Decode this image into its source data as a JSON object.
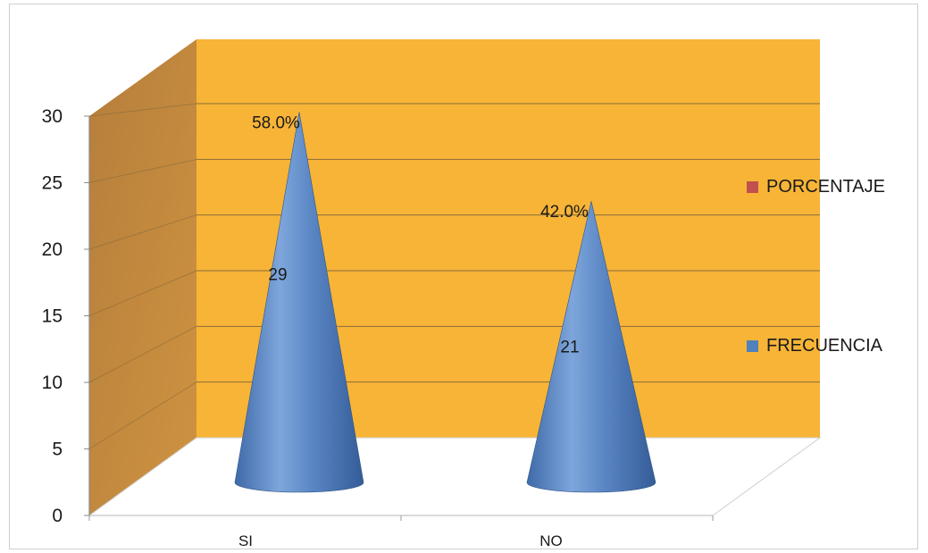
{
  "chart_data": {
    "type": "bar",
    "style": "3d-cone",
    "categories": [
      "SI",
      "NO"
    ],
    "series": [
      {
        "name": "PORCENTAJE",
        "values": [
          0.58,
          0.42
        ],
        "labels": [
          "58.0%",
          "42.0%"
        ],
        "color": "#c0504d"
      },
      {
        "name": "FRECUENCIA",
        "values": [
          29,
          21
        ],
        "labels": [
          "29",
          "21"
        ],
        "color": "#4f81bd"
      }
    ],
    "yticks": [
      0,
      5,
      10,
      15,
      20,
      25,
      30
    ],
    "ylim": [
      0,
      30
    ],
    "grid": true,
    "legend_position": "right",
    "wall_color": "#f7b437",
    "side_wall_color": "#c9893a"
  }
}
